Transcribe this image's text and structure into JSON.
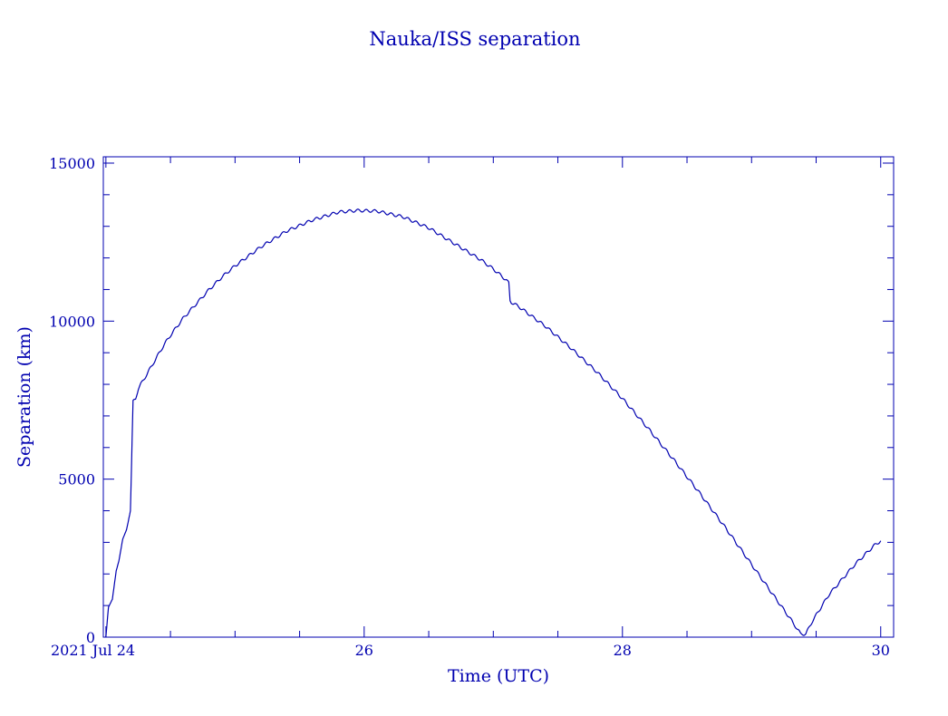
{
  "chart_data": {
    "type": "line",
    "title": "Nauka/ISS separation",
    "xlabel": "Time (UTC)",
    "ylabel": "Separation (km)",
    "x_unit": "days (July 2021, UTC)",
    "xlim": [
      23.98,
      30.1
    ],
    "ylim": [
      0,
      15200
    ],
    "color": "#0000b0",
    "grid": false,
    "x_ticks": [
      {
        "value": 24,
        "label": "2021 Jul 24"
      },
      {
        "value": 26,
        "label": "26"
      },
      {
        "value": 28,
        "label": "28"
      },
      {
        "value": 30,
        "label": "30"
      }
    ],
    "y_ticks": [
      {
        "value": 0,
        "label": "0"
      },
      {
        "value": 5000,
        "label": "5000"
      },
      {
        "value": 10000,
        "label": "10000"
      },
      {
        "value": 15000,
        "label": "15000"
      }
    ],
    "series": [
      {
        "name": "",
        "x": [
          24.0,
          24.02,
          24.05,
          24.08,
          24.1,
          24.13,
          24.16,
          24.19,
          24.21,
          24.22,
          24.23,
          24.24,
          24.25,
          24.27,
          24.3,
          24.35,
          24.4,
          24.45,
          24.5,
          24.6,
          24.7,
          24.8,
          24.9,
          25.0,
          25.2,
          25.4,
          25.6,
          25.8,
          25.95,
          26.1,
          26.3,
          26.5,
          26.7,
          26.9,
          27.0,
          27.1,
          27.12,
          27.13,
          27.14,
          27.2,
          27.4,
          27.6,
          27.8,
          28.0,
          28.2,
          28.4,
          28.6,
          28.8,
          29.0,
          29.2,
          29.3,
          29.38,
          29.42,
          29.47,
          29.6,
          29.8,
          29.95,
          30.0
        ],
        "y": [
          0,
          950,
          1200,
          2100,
          2400,
          3100,
          3400,
          4000,
          7450,
          7500,
          7550,
          7700,
          7850,
          8000,
          8200,
          8550,
          8900,
          9250,
          9550,
          10100,
          10550,
          11000,
          11400,
          11750,
          12350,
          12850,
          13200,
          13450,
          13500,
          13480,
          13300,
          12950,
          12450,
          11950,
          11650,
          11300,
          11200,
          10650,
          10600,
          10450,
          9850,
          9150,
          8400,
          7550,
          6600,
          5600,
          4550,
          3450,
          2300,
          1150,
          580,
          100,
          100,
          500,
          1350,
          2300,
          2900,
          3050
        ]
      }
    ]
  }
}
